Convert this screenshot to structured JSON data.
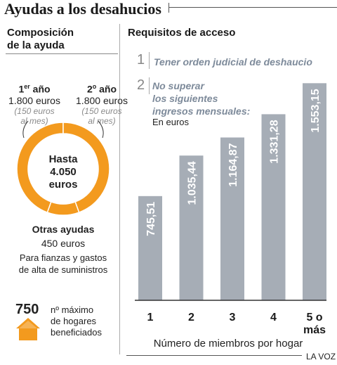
{
  "headline": "Ayudas a los desahucios",
  "left": {
    "title_line1": "Composición",
    "title_line2": "de la ayuda",
    "year1": {
      "ordinal": "1",
      "suffix": "er",
      "word": " año",
      "amount": "1.800 euros",
      "note1": "(150 euros",
      "note2": "al mes)"
    },
    "year2": {
      "ordinal": "2",
      "suffix": "o",
      "word": " año",
      "amount": "1.800 euros",
      "note1": "(150 euros",
      "note2": "al mes)"
    },
    "donut": {
      "line1": "Hasta",
      "line2": "4.050",
      "line3": "euros",
      "color": "#f39a1e",
      "segments": [
        1800,
        1800,
        450
      ]
    },
    "otras": {
      "title": "Otras ayudas",
      "amount": "450 euros",
      "desc1": "Para fianzas y gastos",
      "desc2": "de alta de suministros"
    },
    "households": {
      "count": "750",
      "label1": "nº máximo",
      "label2": "de hogares",
      "label3": "beneficiados",
      "icon": "house-icon"
    }
  },
  "right": {
    "title": "Requisitos de acceso",
    "req1": {
      "num": "1",
      "text": "Tener orden judicial de deshaucio"
    },
    "req2": {
      "num": "2",
      "text1": "No superar",
      "text2": "los siguientes",
      "text3": "ingresos mensuales:",
      "sub": "En euros"
    }
  },
  "chart_data": {
    "type": "bar",
    "categories": [
      "1",
      "2",
      "3",
      "4",
      "5 o más"
    ],
    "values": [
      745.51,
      1035.44,
      1164.87,
      1331.28,
      1553.15
    ],
    "value_labels": [
      "745,51",
      "1.035,44",
      "1.164,87",
      "1.331,28",
      "1.553,15"
    ],
    "category_line1": [
      "1",
      "2",
      "3",
      "4",
      "5 o"
    ],
    "category_line2": [
      "",
      "",
      "",
      "",
      "más"
    ],
    "xlabel": "Número de miembros por hogar",
    "ylim": [
      0,
      1600
    ],
    "bar_color": "#a6adb6",
    "grid": false
  },
  "credit": "LA VOZ"
}
